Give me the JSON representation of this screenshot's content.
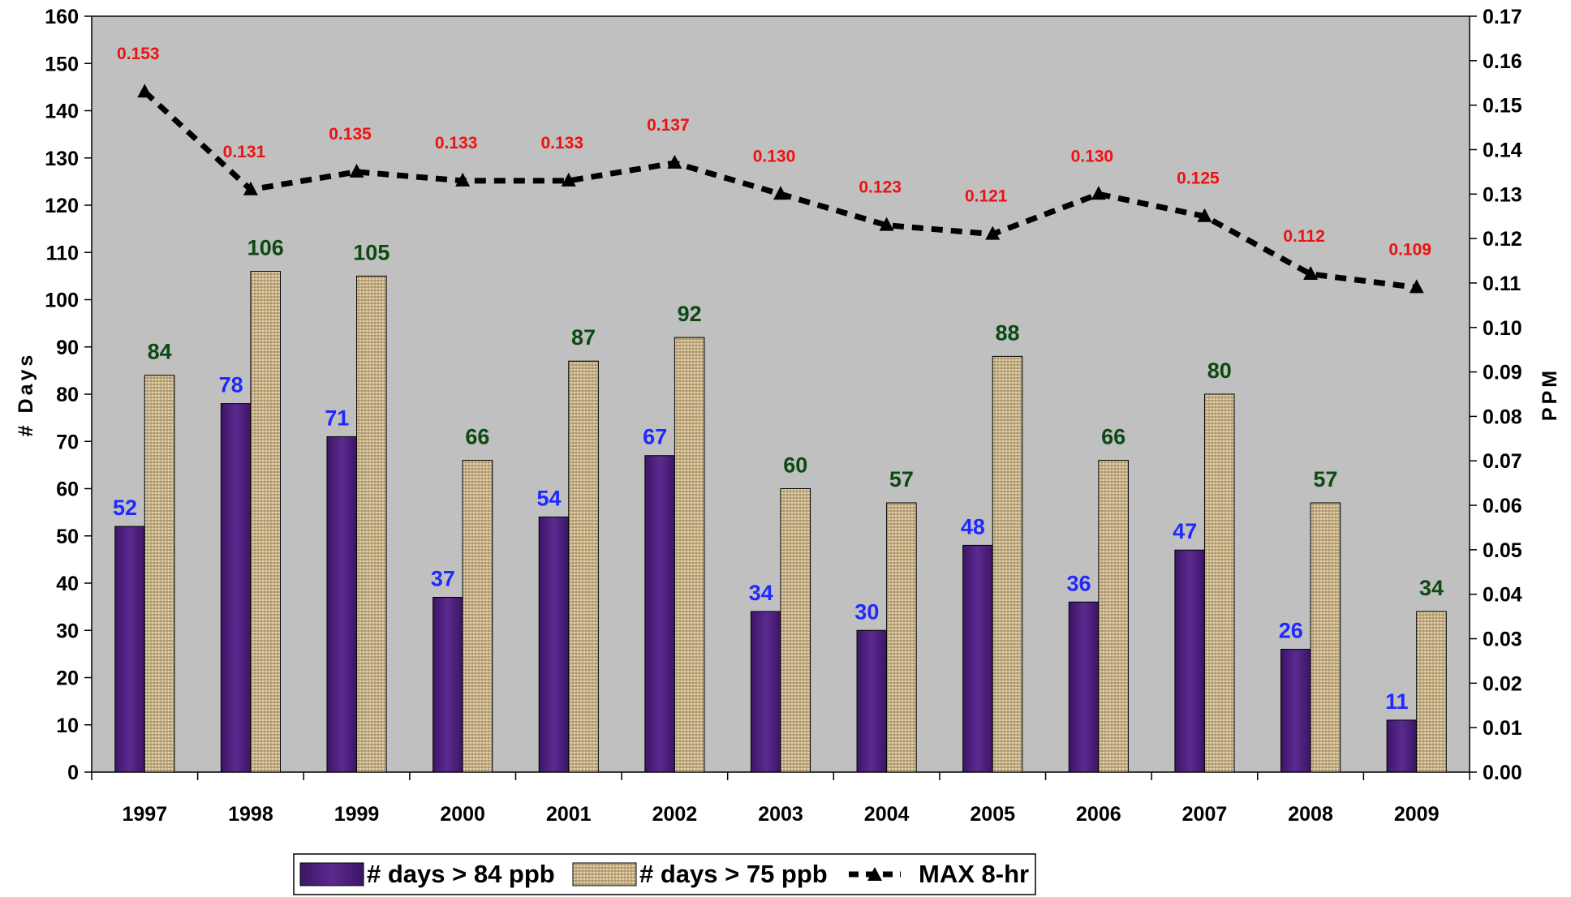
{
  "chart_data": {
    "type": "bar",
    "categories": [
      "1997",
      "1998",
      "1999",
      "2000",
      "2001",
      "2002",
      "2003",
      "2004",
      "2005",
      "2006",
      "2007",
      "2008",
      "2009"
    ],
    "series": [
      {
        "name": "# days > 84 ppb",
        "type": "bar",
        "axis": "left",
        "color": "#4a1a7a",
        "values": [
          52,
          78,
          71,
          37,
          54,
          67,
          34,
          30,
          48,
          36,
          47,
          26,
          11
        ]
      },
      {
        "name": "# days > 75 ppb",
        "type": "bar",
        "axis": "left",
        "color": "#d9c49a",
        "values": [
          84,
          106,
          105,
          66,
          87,
          92,
          60,
          57,
          88,
          66,
          80,
          57,
          34
        ]
      },
      {
        "name": "MAX 8-hr",
        "type": "line",
        "axis": "right",
        "color": "#000000",
        "values": [
          0.153,
          0.131,
          0.135,
          0.133,
          0.133,
          0.137,
          0.13,
          0.123,
          0.121,
          0.13,
          0.125,
          0.112,
          0.109
        ],
        "labels": [
          "0.153",
          "0.131",
          "0.135",
          "0.133",
          "0.133",
          "0.137",
          "0.130",
          "0.123",
          "0.121",
          "0.130",
          "0.125",
          "0.112",
          "0.109"
        ]
      }
    ],
    "ylabel": "# Days",
    "ylabel_right": "PPM",
    "ylim": [
      0,
      160
    ],
    "y_ticks": [
      "0",
      "10",
      "20",
      "30",
      "40",
      "50",
      "60",
      "70",
      "80",
      "90",
      "100",
      "110",
      "120",
      "130",
      "140",
      "150",
      "160"
    ],
    "ylim_right": [
      0,
      0.17
    ],
    "y_right_ticks": [
      "0.00",
      "0.01",
      "0.02",
      "0.03",
      "0.04",
      "0.05",
      "0.06",
      "0.07",
      "0.08",
      "0.09",
      "0.10",
      "0.11",
      "0.12",
      "0.13",
      "0.14",
      "0.15",
      "0.16",
      "0.17"
    ],
    "legend_position": "bottom",
    "plot_background": "#c0c0c0",
    "label_colors": {
      "bar1": "#1f29ff",
      "bar2": "#0d4a12",
      "line": "#ee1111"
    }
  }
}
